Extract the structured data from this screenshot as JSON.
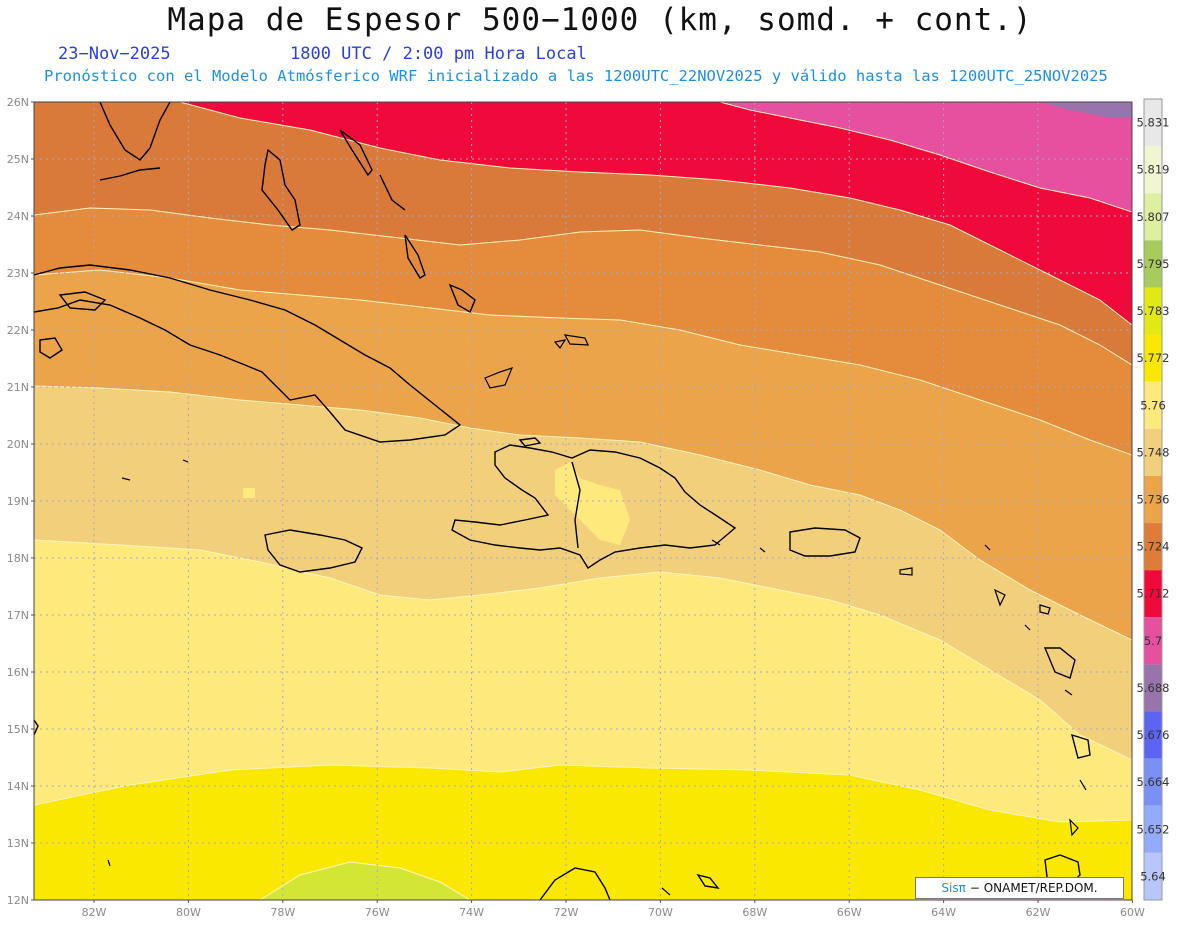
{
  "header": {
    "title": "Mapa de Espesor 500−1000 (km, somd. + cont.)",
    "date": "23−Nov−2025",
    "time": "1800 UTC / 2:00 pm Hora Local",
    "forecast": "Pronóstico con el Modelo Atmósferico WRF inicializado a las 1200UTC_22NOV2025 y válido hasta las  1200UTC_25NOV2025"
  },
  "map": {
    "lat_labels": [
      "26N",
      "25N",
      "24N",
      "23N",
      "22N",
      "21N",
      "20N",
      "19N",
      "18N",
      "17N",
      "16N",
      "15N",
      "14N",
      "13N",
      "12N"
    ],
    "lon_labels": [
      "82W",
      "80W",
      "78W",
      "76W",
      "74W",
      "72W",
      "70W",
      "68W",
      "66W",
      "64W",
      "62W",
      "60W"
    ],
    "grid": true
  },
  "colorbar": {
    "labels": [
      "5.831",
      "5.819",
      "5.807",
      "5.795",
      "5.783",
      "5.772",
      "5.76",
      "5.748",
      "5.736",
      "5.724",
      "5.712",
      "5.7",
      "5.688",
      "5.676",
      "5.664",
      "5.652",
      "5.64"
    ],
    "colors_top_to_bottom": [
      "#e8e8e8",
      "#f2f5d2",
      "#dcf0a0",
      "#a8cc5c",
      "#e2e812",
      "#fae800",
      "#fde97c",
      "#f2cf7a",
      "#eba44a",
      "#de7c38",
      "#f00a3c",
      "#e6509e",
      "#9974ac",
      "#5c64f4",
      "#7a90f6",
      "#94aafa",
      "#b8c6fa"
    ]
  },
  "credit": {
    "sis": "Sisπ",
    "org": "− ONAMET/REP.DOM."
  }
}
